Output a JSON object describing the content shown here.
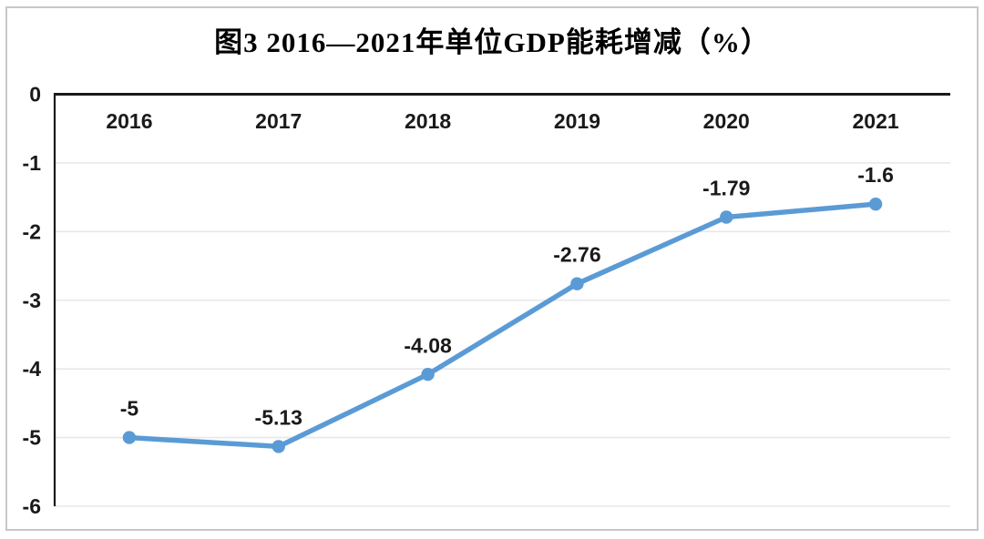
{
  "title": "图3 2016—2021年单位GDP能耗增减（%）",
  "chart_data": {
    "type": "line",
    "title": "图3 2016—2021年单位GDP能耗增减（%）",
    "categories": [
      "2016",
      "2017",
      "2018",
      "2019",
      "2020",
      "2021"
    ],
    "values": [
      -5,
      -5.13,
      -4.08,
      -2.76,
      -1.79,
      -1.6
    ],
    "point_labels": [
      "-5",
      "-5.13",
      "-4.08",
      "-2.76",
      "-1.79",
      "-1.6"
    ],
    "xlabel": "",
    "ylabel": "",
    "ylim": [
      -6,
      0
    ],
    "yticks": [
      0,
      -1,
      -2,
      -3,
      -4,
      -5,
      -6
    ],
    "ytick_labels": [
      "0",
      "-1",
      "-2",
      "-3",
      "-4",
      "-5",
      "-6"
    ],
    "grid": true,
    "legend": false,
    "marker": "circle"
  },
  "colors": {
    "line": "#5B9BD5",
    "marker": "#5B9BD5",
    "grid": "#e8e8e8",
    "axis": "#1a1a1a",
    "text": "#1a1a1a",
    "frame_border": "#c7c7c7",
    "background": "#ffffff"
  }
}
